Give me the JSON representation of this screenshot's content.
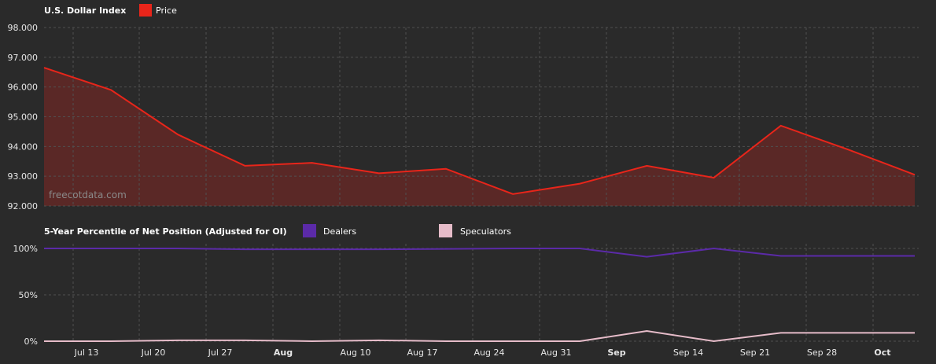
{
  "watermark": "freecotdata.com",
  "colors": {
    "background": "#2a2a2a",
    "grid": "#505050",
    "price_line": "#e8251a",
    "price_fill": "#5a2826",
    "dealers": "#5b2aa8",
    "speculators": "#e6bcc9",
    "text": "#e6e6e6"
  },
  "chart_data": [
    {
      "type": "area",
      "title": "U.S. Dollar Index",
      "legend": [
        "Price"
      ],
      "ylim": [
        92,
        98
      ],
      "yticks": [
        "98.000",
        "97.000",
        "96.000",
        "95.000",
        "94.000",
        "93.000",
        "92.000"
      ],
      "grid": true,
      "legend_placement": "top-left",
      "x": [
        "Jul 8",
        "Jul 15",
        "Jul 22",
        "Jul 29",
        "Aug 5",
        "Aug 12",
        "Aug 19",
        "Aug 26",
        "Sep 2",
        "Sep 9",
        "Sep 16",
        "Sep 23",
        "Sep 30",
        "Oct 7"
      ],
      "series": [
        {
          "name": "Price",
          "values": [
            96.65,
            95.9,
            94.4,
            93.35,
            93.45,
            93.1,
            93.25,
            92.4,
            92.75,
            93.35,
            92.95,
            94.7,
            93.9,
            93.05
          ]
        }
      ]
    },
    {
      "type": "line",
      "title": "5-Year Percentile of Net Position (Adjusted for OI)",
      "legend": [
        "Dealers",
        "Speculators"
      ],
      "ylim": [
        0,
        100
      ],
      "yticks": [
        "100%",
        "50%",
        "0%"
      ],
      "grid": true,
      "legend_placement": "top-left",
      "x": [
        "Jul 8",
        "Jul 15",
        "Jul 22",
        "Jul 29",
        "Aug 5",
        "Aug 12",
        "Aug 19",
        "Aug 26",
        "Sep 2",
        "Sep 9",
        "Sep 16",
        "Sep 23",
        "Sep 30",
        "Oct 7"
      ],
      "series": [
        {
          "name": "Dealers",
          "values": [
            100,
            100,
            100,
            99,
            99,
            99,
            99.5,
            100,
            100,
            91,
            100,
            92,
            92,
            92
          ]
        },
        {
          "name": "Speculators",
          "values": [
            0,
            0,
            1,
            1,
            0,
            1,
            0,
            0,
            0,
            11,
            0,
            9,
            9,
            9
          ]
        }
      ],
      "xticks": [
        {
          "label": "Jul 13",
          "bold": false
        },
        {
          "label": "Jul 20",
          "bold": false
        },
        {
          "label": "Jul 27",
          "bold": false
        },
        {
          "label": "Aug",
          "bold": true
        },
        {
          "label": "Aug 10",
          "bold": false
        },
        {
          "label": "Aug 17",
          "bold": false
        },
        {
          "label": "Aug 24",
          "bold": false
        },
        {
          "label": "Aug 31",
          "bold": false
        },
        {
          "label": "Sep",
          "bold": true
        },
        {
          "label": "Sep 14",
          "bold": false
        },
        {
          "label": "Sep 21",
          "bold": false
        },
        {
          "label": "Sep 28",
          "bold": false
        },
        {
          "label": "Oct",
          "bold": true
        }
      ]
    }
  ]
}
